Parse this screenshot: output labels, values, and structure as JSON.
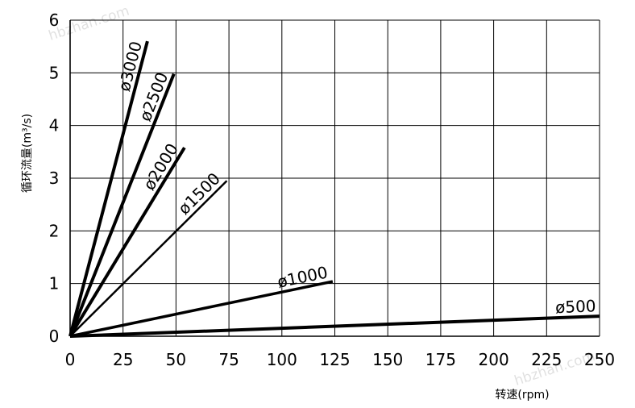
{
  "chart_data": {
    "type": "line",
    "xlabel": "转速(rpm)",
    "ylabel": "循环流量(m³/s)",
    "xlim": [
      0,
      250
    ],
    "ylim": [
      0,
      6
    ],
    "x_ticks": [
      "0",
      "25",
      "50",
      "75",
      "100",
      "125",
      "150",
      "175",
      "200",
      "225",
      "250"
    ],
    "y_ticks": [
      "0",
      "1",
      "2",
      "3",
      "4",
      "5",
      "6"
    ],
    "grid": true,
    "series": [
      {
        "name": "ø3000",
        "x": [
          0,
          36.5
        ],
        "y": [
          0,
          5.6
        ],
        "width": 4
      },
      {
        "name": "ø2500",
        "x": [
          0,
          49
        ],
        "y": [
          0,
          4.98
        ],
        "width": 4
      },
      {
        "name": "ø2000",
        "x": [
          0,
          54
        ],
        "y": [
          0,
          3.58
        ],
        "width": 4
      },
      {
        "name": "ø1500",
        "x": [
          0,
          74
        ],
        "y": [
          0,
          2.95
        ],
        "width": 2.5
      },
      {
        "name": "ø1000",
        "x": [
          0,
          124
        ],
        "y": [
          0,
          1.04
        ],
        "width": 3.5
      },
      {
        "name": "ø500",
        "x": [
          0,
          250
        ],
        "y": [
          0,
          0.38
        ],
        "width": 4
      }
    ]
  },
  "watermarks": [
    "hbzhan.com",
    "hbzhan.com"
  ]
}
